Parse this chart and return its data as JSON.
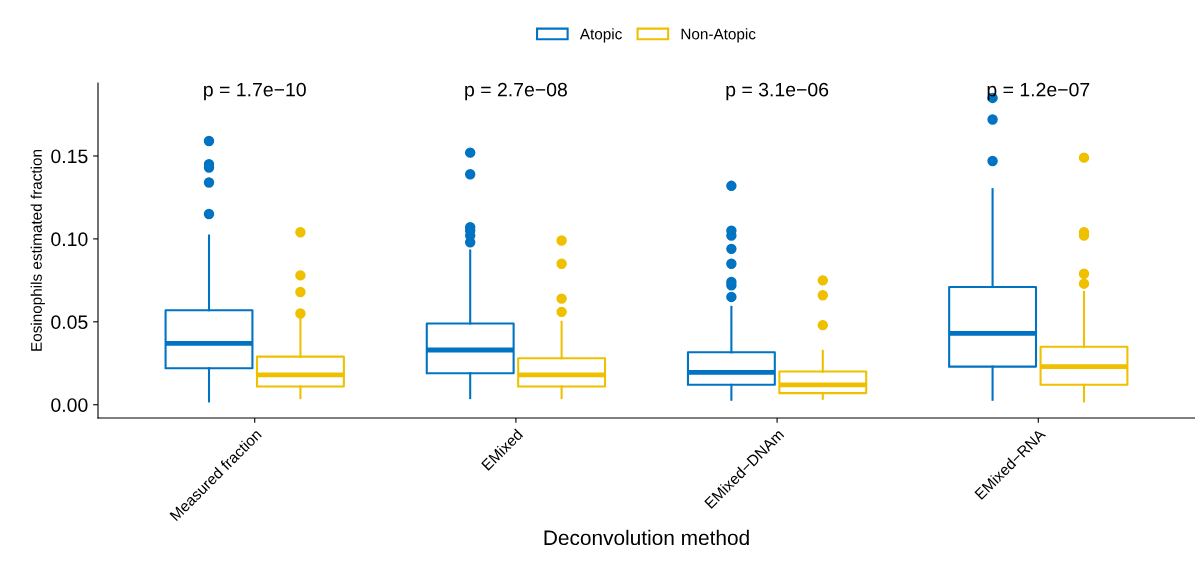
{
  "chart_data": {
    "type": "box",
    "xlabel": "Deconvolution method",
    "ylabel": "Eosinophils estimated fraction",
    "categories": [
      "Measured fraction",
      "EMixed",
      "EMixed−DNAm",
      "EMixed−RNA"
    ],
    "ylim": [
      -0.008,
      0.194
    ],
    "yticks": [
      {
        "value": 0,
        "label": "0.00"
      },
      {
        "value": 0.05,
        "label": "0.05"
      },
      {
        "value": 0.1,
        "label": "0.10"
      },
      {
        "value": 0.15,
        "label": "0.15"
      }
    ],
    "grid": false,
    "legend": "top",
    "annotations": [
      "p = 1.7e−10",
      "p = 2.7e−08",
      "p = 3.1e−06",
      "p = 1.2e−07"
    ],
    "series": [
      {
        "name": "Atopic",
        "color": "#0073c2",
        "boxes": [
          {
            "low": 0.002,
            "q1": 0.022,
            "median": 0.037,
            "q3": 0.057,
            "high": 0.102,
            "outliers": [
              0.115,
              0.134,
              0.143,
              0.145,
              0.159
            ]
          },
          {
            "low": 0.004,
            "q1": 0.019,
            "median": 0.033,
            "q3": 0.049,
            "high": 0.093,
            "outliers": [
              0.098,
              0.102,
              0.105,
              0.107,
              0.139,
              0.152
            ]
          },
          {
            "low": 0.003,
            "q1": 0.012,
            "median": 0.0195,
            "q3": 0.0316,
            "high": 0.059,
            "outliers": [
              0.065,
              0.072,
              0.074,
              0.085,
              0.094,
              0.102,
              0.105,
              0.132
            ]
          },
          {
            "low": 0.003,
            "q1": 0.023,
            "median": 0.043,
            "q3": 0.071,
            "high": 0.13,
            "outliers": [
              0.147,
              0.172,
              0.185
            ]
          }
        ]
      },
      {
        "name": "Non-Atopic",
        "color": "#efc000",
        "boxes": [
          {
            "low": 0.004,
            "q1": 0.011,
            "median": 0.018,
            "q3": 0.029,
            "high": 0.053,
            "outliers": [
              0.055,
              0.068,
              0.078,
              0.104
            ]
          },
          {
            "low": 0.004,
            "q1": 0.011,
            "median": 0.018,
            "q3": 0.028,
            "high": 0.05,
            "outliers": [
              0.056,
              0.064,
              0.085,
              0.099
            ]
          },
          {
            "low": 0.0036,
            "q1": 0.007,
            "median": 0.012,
            "q3": 0.02,
            "high": 0.0325,
            "outliers": [
              0.048,
              0.066,
              0.075
            ]
          },
          {
            "low": 0.002,
            "q1": 0.012,
            "median": 0.023,
            "q3": 0.035,
            "high": 0.068,
            "outliers": [
              0.073,
              0.079,
              0.102,
              0.104,
              0.149
            ]
          }
        ]
      }
    ]
  }
}
